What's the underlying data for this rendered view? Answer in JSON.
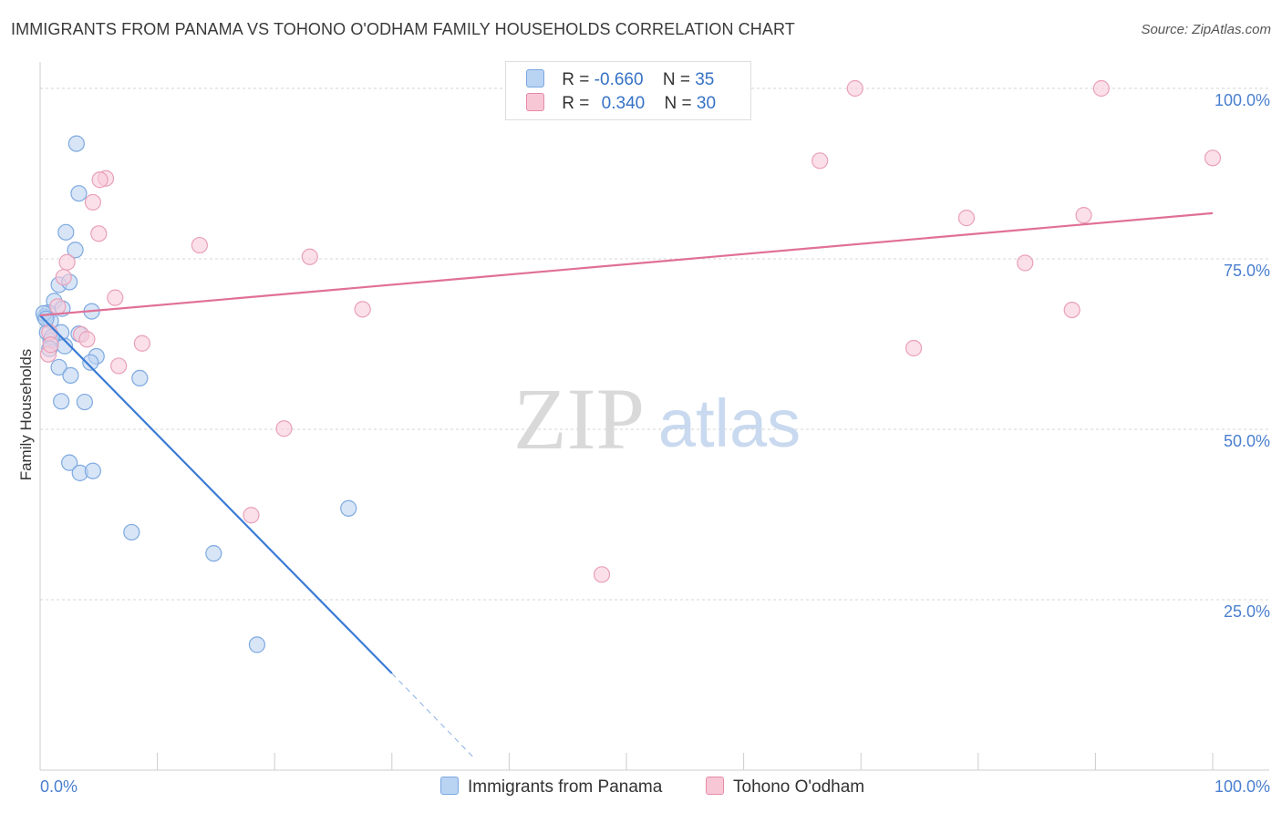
{
  "title": "IMMIGRANTS FROM PANAMA VS TOHONO O'ODHAM FAMILY HOUSEHOLDS CORRELATION CHART",
  "source": "Source: ZipAtlas.com",
  "watermark": {
    "zip": "ZIP",
    "atlas": "atlas"
  },
  "legend": {
    "rows": [
      {
        "r_label": "R =",
        "r_value": "-0.660",
        "n_label": "N =",
        "n_value": "35",
        "color": "#7aa7e0",
        "fill": "#b9d3f3"
      },
      {
        "r_label": "R =",
        "r_value": "0.340",
        "n_label": "N =",
        "n_value": "30",
        "color": "#e68aa8",
        "fill": "#f8c7d6"
      }
    ]
  },
  "bottom_legend": [
    "Immigrants from Panama",
    "Tohono O'odham"
  ],
  "chart_data": {
    "type": "scatter",
    "ylabel": "Family Households",
    "xlim": [
      0,
      100
    ],
    "ylim": [
      0,
      105
    ],
    "x_tick_labels": [
      "0.0%",
      "100.0%"
    ],
    "y_tick_labels": [
      "25.0%",
      "50.0%",
      "75.0%",
      "100.0%"
    ],
    "y_ticks": [
      25,
      50,
      75,
      100
    ],
    "grid": "horizontal dashed",
    "series": [
      {
        "name": "Immigrants from Panama",
        "color": "#3a7bd5",
        "marker_fill": "#bcd4f2",
        "marker_stroke": "#7ea9e0",
        "trend": {
          "x0": 0,
          "y0": 66.7,
          "x1": 30,
          "y1": 14.2,
          "dash_to_x": 37,
          "dash_to_y": 1.8
        },
        "points": [
          [
            3.1,
            91.9
          ],
          [
            3.3,
            84.6
          ],
          [
            2.2,
            78.9
          ],
          [
            3.0,
            76.3
          ],
          [
            1.6,
            71.2
          ],
          [
            2.5,
            71.6
          ],
          [
            1.2,
            68.8
          ],
          [
            1.9,
            67.7
          ],
          [
            0.7,
            67.1
          ],
          [
            0.4,
            66.5
          ],
          [
            0.9,
            65.9
          ],
          [
            4.4,
            67.3
          ],
          [
            0.6,
            64.2
          ],
          [
            1.8,
            64.2
          ],
          [
            0.9,
            63.0
          ],
          [
            2.1,
            62.2
          ],
          [
            3.3,
            64.0
          ],
          [
            4.8,
            60.7
          ],
          [
            4.3,
            59.8
          ],
          [
            1.6,
            59.1
          ],
          [
            2.6,
            57.9
          ],
          [
            8.5,
            57.5
          ],
          [
            1.8,
            54.1
          ],
          [
            3.8,
            54.0
          ],
          [
            2.5,
            45.1
          ],
          [
            3.4,
            43.6
          ],
          [
            4.5,
            43.9
          ],
          [
            7.8,
            34.9
          ],
          [
            14.8,
            31.8
          ],
          [
            26.3,
            38.4
          ],
          [
            18.5,
            18.4
          ],
          [
            0.3,
            67.0
          ],
          [
            0.5,
            66.2
          ],
          [
            1.0,
            63.5
          ],
          [
            0.8,
            61.8
          ]
        ]
      },
      {
        "name": "Tohono O'odham",
        "color": "#e07096",
        "marker_fill": "#f8ccda",
        "marker_stroke": "#e9a0b8",
        "trend": {
          "x0": 0,
          "y0": 66.7,
          "x1": 100,
          "y1": 81.7
        },
        "points": [
          [
            69.5,
            100.0
          ],
          [
            90.5,
            100.0
          ],
          [
            66.5,
            89.4
          ],
          [
            100.0,
            89.8
          ],
          [
            5.6,
            86.8
          ],
          [
            5.1,
            86.6
          ],
          [
            4.5,
            83.3
          ],
          [
            79.0,
            81.0
          ],
          [
            89.0,
            81.4
          ],
          [
            5.0,
            78.7
          ],
          [
            13.6,
            77.0
          ],
          [
            23.0,
            75.3
          ],
          [
            2.3,
            74.5
          ],
          [
            84.0,
            74.4
          ],
          [
            2.0,
            72.3
          ],
          [
            6.4,
            69.3
          ],
          [
            27.5,
            67.6
          ],
          [
            88.0,
            67.5
          ],
          [
            0.8,
            64.2
          ],
          [
            3.5,
            63.9
          ],
          [
            4.0,
            63.2
          ],
          [
            8.7,
            62.6
          ],
          [
            74.5,
            61.9
          ],
          [
            0.7,
            61.0
          ],
          [
            6.7,
            59.3
          ],
          [
            20.8,
            50.1
          ],
          [
            18.0,
            37.4
          ],
          [
            47.9,
            28.7
          ],
          [
            1.5,
            68.0
          ],
          [
            0.9,
            62.4
          ]
        ]
      }
    ]
  }
}
